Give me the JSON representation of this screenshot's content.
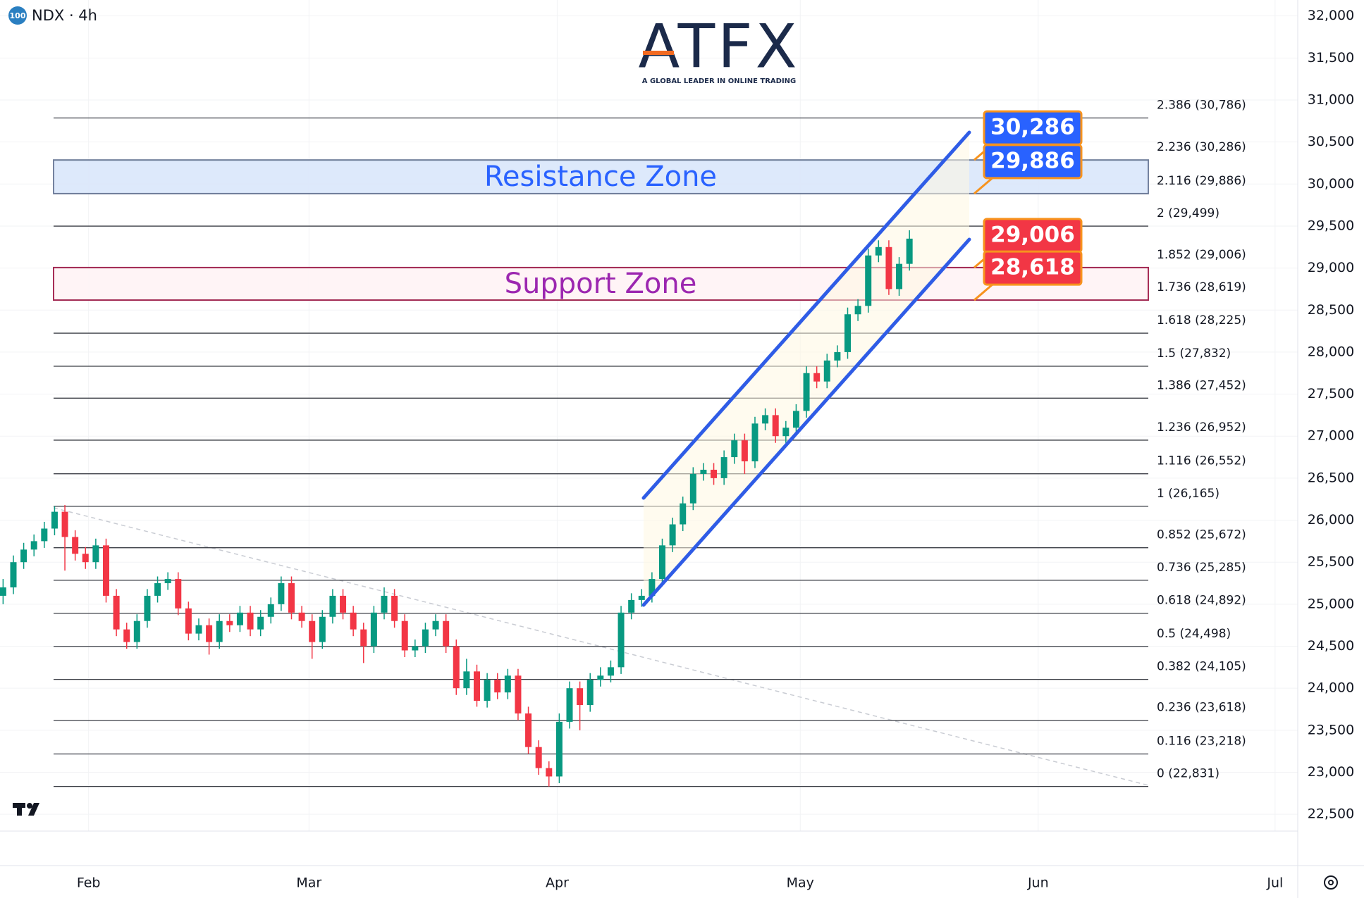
{
  "chart_data": {
    "type": "candlestick",
    "badge": "100",
    "symbol": "NDX · 4h",
    "logo": "ATFX",
    "tagline": "A GLOBAL LEADER IN ONLINE TRADING",
    "up_color": "#089981",
    "down_color": "#f23645",
    "xlim": [
      -0.3,
      125.7
    ],
    "xticks": [
      {
        "value": 8.3,
        "label": "Feb"
      },
      {
        "value": 29.7,
        "label": "Mar"
      },
      {
        "value": 53.8,
        "label": "Apr"
      },
      {
        "value": 77.4,
        "label": "May"
      },
      {
        "value": 100.5,
        "label": "Jun"
      },
      {
        "value": 123.5,
        "label": "Jul"
      }
    ],
    "ylim": [
      22300,
      32190
    ],
    "yticks": [
      {
        "value": 22500,
        "label": "22,500"
      },
      {
        "value": 23000,
        "label": "23,000"
      },
      {
        "value": 23500,
        "label": "23,500"
      },
      {
        "value": 24000,
        "label": "24,000"
      },
      {
        "value": 24500,
        "label": "24,500"
      },
      {
        "value": 25000,
        "label": "25,000"
      },
      {
        "value": 25500,
        "label": "25,500"
      },
      {
        "value": 26000,
        "label": "26,000"
      },
      {
        "value": 26500,
        "label": "26,500"
      },
      {
        "value": 27000,
        "label": "27,000"
      },
      {
        "value": 27500,
        "label": "27,500"
      },
      {
        "value": 28000,
        "label": "28,000"
      },
      {
        "value": 28500,
        "label": "28,500"
      },
      {
        "value": 29000,
        "label": "29,000"
      },
      {
        "value": 29500,
        "label": "29,500"
      },
      {
        "value": 30000,
        "label": "30,000"
      },
      {
        "value": 30500,
        "label": "30,500"
      },
      {
        "value": 31000,
        "label": "31,000"
      },
      {
        "value": 31500,
        "label": "31,500"
      },
      {
        "value": 32000,
        "label": "32,000"
      }
    ],
    "fib_levels": [
      {
        "value": 30786,
        "label": "2.386 (30,786)"
      },
      {
        "value": 30286,
        "label": "2.236 (30,286)"
      },
      {
        "value": 29886,
        "label": "2.116 (29,886)"
      },
      {
        "value": 29499,
        "label": "2 (29,499)"
      },
      {
        "value": 29006,
        "label": "1.852 (29,006)"
      },
      {
        "value": 28619,
        "label": "1.736 (28,619)"
      },
      {
        "value": 28225,
        "label": "1.618 (28,225)"
      },
      {
        "value": 27832,
        "label": "1.5 (27,832)"
      },
      {
        "value": 27452,
        "label": "1.386 (27,452)"
      },
      {
        "value": 26952,
        "label": "1.236 (26,952)"
      },
      {
        "value": 26552,
        "label": "1.116 (26,552)"
      },
      {
        "value": 26165,
        "label": "1 (26,165)"
      },
      {
        "value": 25672,
        "label": "0.852 (25,672)"
      },
      {
        "value": 25285,
        "label": "0.736 (25,285)"
      },
      {
        "value": 24892,
        "label": "0.618 (24,892)"
      },
      {
        "value": 24498,
        "label": "0.5 (24,498)"
      },
      {
        "value": 24105,
        "label": "0.382 (24,105)"
      },
      {
        "value": 23618,
        "label": "0.236 (23,618)"
      },
      {
        "value": 23218,
        "label": "0.116 (23,218)"
      },
      {
        "value": 22831,
        "label": "0 (22,831)"
      }
    ],
    "zones": [
      {
        "name": "Resistance Zone",
        "values": [
          29886,
          30286
        ],
        "color": "#2962ff",
        "fill": "#dce8fb",
        "stroke": "#6d7c9a"
      },
      {
        "name": "Support Zone",
        "values": [
          28619,
          29006
        ],
        "color": "#9c27b0",
        "fill": "#fff4f6",
        "stroke": "#a3224f"
      }
    ],
    "price_tags": [
      {
        "value": 30286,
        "label": "30,286",
        "color": "#2962ff"
      },
      {
        "value": 29886,
        "label": "29,886",
        "color": "#2962ff"
      },
      {
        "value": 29006,
        "label": "29,006",
        "color": "#f23645"
      },
      {
        "value": 28618,
        "label": "28,618",
        "color": "#f23645"
      }
    ],
    "ohlc": [
      [
        25100,
        25300,
        25000,
        25200
      ],
      [
        25200,
        25580,
        25120,
        25500
      ],
      [
        25500,
        25730,
        25420,
        25650
      ],
      [
        25650,
        25830,
        25570,
        25750
      ],
      [
        25750,
        25980,
        25670,
        25900
      ],
      [
        25900,
        26165,
        25820,
        26100
      ],
      [
        26100,
        26180,
        25400,
        25800
      ],
      [
        25800,
        25880,
        25520,
        25600
      ],
      [
        25600,
        25680,
        25420,
        25500
      ],
      [
        25500,
        25780,
        25420,
        25700
      ],
      [
        25700,
        25780,
        25020,
        25100
      ],
      [
        25100,
        25180,
        24620,
        24700
      ],
      [
        24700,
        24780,
        24470,
        24550
      ],
      [
        24550,
        24880,
        24470,
        24800
      ],
      [
        24800,
        25180,
        24720,
        25100
      ],
      [
        25100,
        25330,
        25020,
        25250
      ],
      [
        25250,
        25380,
        25170,
        25300
      ],
      [
        25300,
        25380,
        24870,
        24950
      ],
      [
        24950,
        25030,
        24570,
        24650
      ],
      [
        24650,
        24830,
        24570,
        24750
      ],
      [
        24750,
        24830,
        24400,
        24550
      ],
      [
        24550,
        24880,
        24470,
        24800
      ],
      [
        24800,
        24880,
        24670,
        24750
      ],
      [
        24750,
        24980,
        24670,
        24900
      ],
      [
        24900,
        24980,
        24620,
        24700
      ],
      [
        24700,
        24930,
        24620,
        24850
      ],
      [
        24850,
        25080,
        24770,
        25000
      ],
      [
        25000,
        25330,
        24920,
        25250
      ],
      [
        25250,
        25330,
        24820,
        24900
      ],
      [
        24900,
        24980,
        24720,
        24800
      ],
      [
        24800,
        24880,
        24350,
        24550
      ],
      [
        24550,
        24930,
        24470,
        24850
      ],
      [
        24850,
        25180,
        24770,
        25100
      ],
      [
        25100,
        25180,
        24820,
        24900
      ],
      [
        24900,
        24980,
        24620,
        24700
      ],
      [
        24700,
        24780,
        24300,
        24500
      ],
      [
        24500,
        24980,
        24420,
        24900
      ],
      [
        24900,
        25200,
        24820,
        25100
      ],
      [
        25100,
        25180,
        24720,
        24800
      ],
      [
        24800,
        24880,
        24370,
        24450
      ],
      [
        24450,
        24580,
        24370,
        24500
      ],
      [
        24500,
        24780,
        24420,
        24700
      ],
      [
        24700,
        24880,
        24620,
        24800
      ],
      [
        24800,
        24880,
        24420,
        24500
      ],
      [
        24500,
        24580,
        23920,
        24000
      ],
      [
        24000,
        24350,
        23920,
        24200
      ],
      [
        24200,
        24280,
        23780,
        23850
      ],
      [
        23850,
        24180,
        23770,
        24100
      ],
      [
        24100,
        24180,
        23870,
        23950
      ],
      [
        23950,
        24230,
        23870,
        24150
      ],
      [
        24150,
        24230,
        23620,
        23700
      ],
      [
        23700,
        23780,
        23220,
        23300
      ],
      [
        23300,
        23380,
        22970,
        23050
      ],
      [
        23050,
        23130,
        22831,
        22950
      ],
      [
        22950,
        23700,
        22870,
        23600
      ],
      [
        23600,
        24080,
        23520,
        24000
      ],
      [
        24000,
        24080,
        23500,
        23800
      ],
      [
        23800,
        24180,
        23720,
        24100
      ],
      [
        24100,
        24250,
        24020,
        24150
      ],
      [
        24150,
        24330,
        24070,
        24250
      ],
      [
        24250,
        24980,
        24170,
        24900
      ],
      [
        24900,
        25130,
        24820,
        25050
      ],
      [
        25050,
        25180,
        24970,
        25100
      ],
      [
        25100,
        25380,
        25020,
        25300
      ],
      [
        25300,
        25780,
        25220,
        25700
      ],
      [
        25700,
        26030,
        25620,
        25950
      ],
      [
        25950,
        26280,
        25870,
        26200
      ],
      [
        26200,
        26630,
        26120,
        26550
      ],
      [
        26550,
        26680,
        26470,
        26600
      ],
      [
        26600,
        26680,
        26420,
        26500
      ],
      [
        26500,
        26830,
        26420,
        26750
      ],
      [
        26750,
        27030,
        26670,
        26950
      ],
      [
        26950,
        27030,
        26550,
        26700
      ],
      [
        26700,
        27230,
        26620,
        27150
      ],
      [
        27150,
        27330,
        27070,
        27250
      ],
      [
        27250,
        27330,
        26920,
        27000
      ],
      [
        27000,
        27180,
        26920,
        27100
      ],
      [
        27100,
        27380,
        27020,
        27300
      ],
      [
        27300,
        27830,
        27220,
        27750
      ],
      [
        27750,
        27830,
        27570,
        27650
      ],
      [
        27650,
        27980,
        27570,
        27900
      ],
      [
        27900,
        28080,
        27820,
        28000
      ],
      [
        28000,
        28530,
        27920,
        28450
      ],
      [
        28450,
        28630,
        28370,
        28550
      ],
      [
        28550,
        29230,
        28470,
        29150
      ],
      [
        29150,
        29330,
        29070,
        29250
      ],
      [
        29250,
        29330,
        28680,
        28750
      ],
      [
        28750,
        29130,
        28670,
        29050
      ],
      [
        29050,
        29450,
        28970,
        29350
      ]
    ]
  }
}
